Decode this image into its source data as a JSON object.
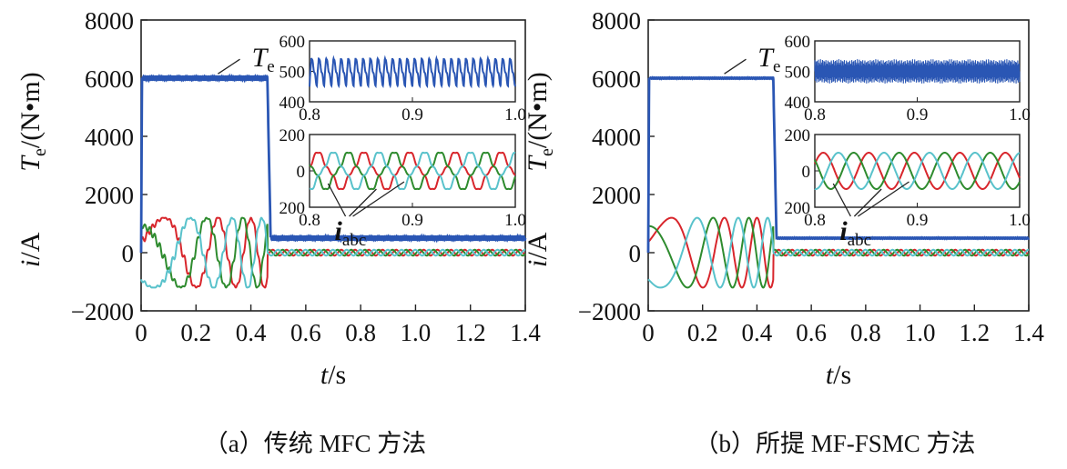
{
  "chart_data": [
    {
      "type": "line",
      "panel": "a",
      "caption": "（a）传统 MFC 方法",
      "xlabel": "t/s",
      "ylabel_top": "Te/(N•m)",
      "ylabel_bottom": "i/A",
      "xlim": [
        0,
        1.4
      ],
      "ylim": [
        -2000,
        8000
      ],
      "xticks": [
        "0",
        "0.2",
        "0.4",
        "0.6",
        "0.8",
        "1.0",
        "1.2",
        "1.4"
      ],
      "yticks": [
        "−2000",
        "0",
        "2000",
        "4000",
        "6000",
        "8000"
      ],
      "annotation_torque": "Te",
      "annotation_current": "iabc",
      "torque": {
        "name": "Te",
        "color": "#2a56b4",
        "level_high": 6000,
        "level_low": 500,
        "step_time": 0.46,
        "ripple": "high"
      },
      "currents": {
        "colors": [
          "#d8262c",
          "#2e8b2e",
          "#59c2cb"
        ],
        "amplitude_startup": 1200,
        "amplitude_steady": 100
      },
      "inset_torque": {
        "xlim": [
          0.8,
          1.0
        ],
        "ylim": [
          400,
          600
        ],
        "xticks": [
          "0.8",
          "0.9",
          "1.0"
        ],
        "yticks": [
          "400",
          "500",
          "600"
        ],
        "mean": 500,
        "ripple_amplitude": 50,
        "cycles": 28
      },
      "inset_current": {
        "xlim": [
          0.8,
          1.0
        ],
        "ylim": [
          -200,
          200
        ],
        "xticks": [
          "0.8",
          "0.9",
          "1.0"
        ],
        "yticks": [
          "200",
          "0",
          "200"
        ],
        "amplitude": 100,
        "cycles": 4.5,
        "distorted": true
      }
    },
    {
      "type": "line",
      "panel": "b",
      "caption": "（b）所提 MF-FSMC 方法",
      "xlabel": "t/s",
      "ylabel_top": "Te/(N•m)",
      "ylabel_bottom": "i/A",
      "xlim": [
        0,
        1.4
      ],
      "ylim": [
        -2000,
        8000
      ],
      "xticks": [
        "0",
        "0.2",
        "0.4",
        "0.6",
        "0.8",
        "1.0",
        "1.2",
        "1.4"
      ],
      "yticks": [
        "−2000",
        "0",
        "2000",
        "4000",
        "6000",
        "8000"
      ],
      "annotation_torque": "Te",
      "annotation_current": "iabc",
      "torque": {
        "name": "Te",
        "color": "#2a56b4",
        "level_high": 6000,
        "level_low": 500,
        "step_time": 0.46,
        "ripple": "low"
      },
      "currents": {
        "colors": [
          "#d8262c",
          "#2e8b2e",
          "#59c2cb"
        ],
        "amplitude_startup": 1200,
        "amplitude_steady": 100
      },
      "inset_torque": {
        "xlim": [
          0.8,
          1.0
        ],
        "ylim": [
          400,
          600
        ],
        "xticks": [
          "0.8",
          "0.9",
          "1.0"
        ],
        "yticks": [
          "400",
          "500",
          "600"
        ],
        "mean": 500,
        "ripple_amplitude": 40,
        "cycles": 300
      },
      "inset_current": {
        "xlim": [
          0.8,
          1.0
        ],
        "ylim": [
          -200,
          200
        ],
        "xticks": [
          "0.8",
          "0.9",
          "1.0"
        ],
        "yticks": [
          "200",
          "0",
          "200"
        ],
        "amplitude": 100,
        "cycles": 4.5,
        "distorted": false
      }
    }
  ]
}
